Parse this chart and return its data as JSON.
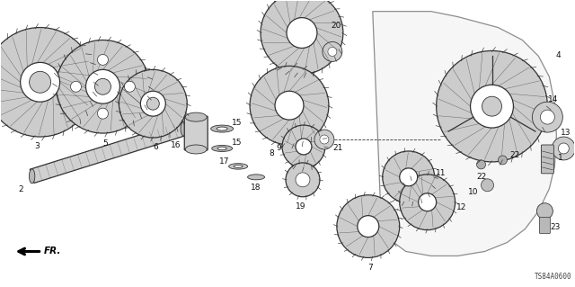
{
  "bg_color": "#ffffff",
  "diagram_code": "TS84A0600",
  "color_line": "#333333",
  "color_fill": "#cccccc",
  "color_white": "#ffffff",
  "color_housing": "#f0f0f0"
}
